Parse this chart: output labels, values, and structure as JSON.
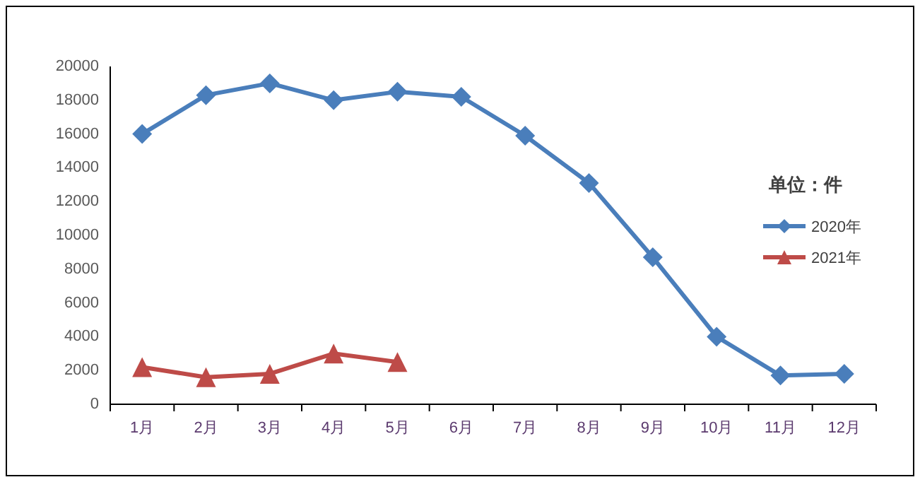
{
  "chart_data": {
    "type": "line",
    "legend_title": "单位：件",
    "categories": [
      "1月",
      "2月",
      "3月",
      "4月",
      "5月",
      "6月",
      "7月",
      "8月",
      "9月",
      "10月",
      "11月",
      "12月"
    ],
    "series": [
      {
        "name": "2020年",
        "color": "#4a7ebb",
        "marker": "diamond",
        "values": [
          16000,
          18300,
          19000,
          18000,
          18500,
          18200,
          15900,
          13100,
          8700,
          4000,
          1700,
          1800
        ]
      },
      {
        "name": "2021年",
        "color": "#be4b48",
        "marker": "triangle",
        "values": [
          2200,
          1600,
          1800,
          3000,
          2500,
          null,
          null,
          null,
          null,
          null,
          null,
          null
        ]
      }
    ],
    "ylim": [
      0,
      20000
    ],
    "yticks": [
      0,
      2000,
      4000,
      6000,
      8000,
      10000,
      12000,
      14000,
      16000,
      18000,
      20000
    ],
    "grid": false,
    "legend": "right"
  }
}
